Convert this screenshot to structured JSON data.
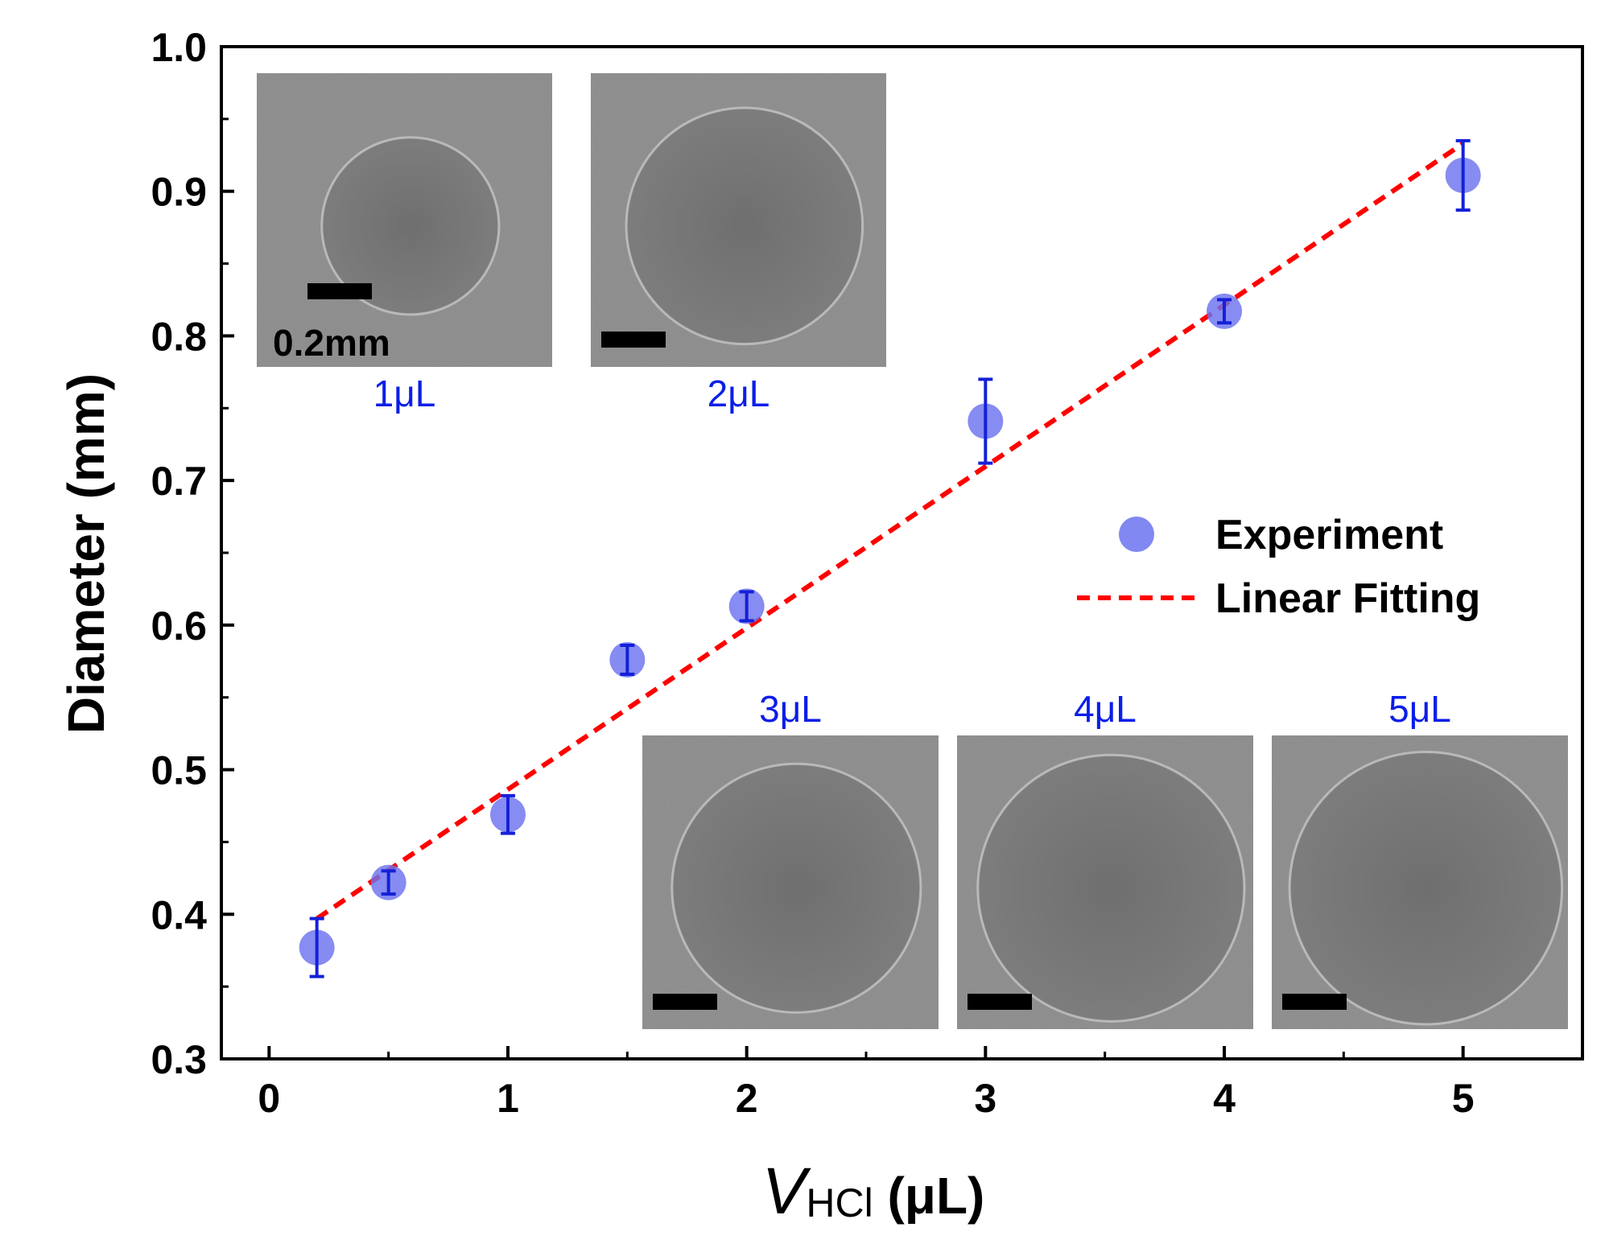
{
  "chart_data": {
    "type": "scatter",
    "title": "",
    "xlabel": "V",
    "xlabel_subscript": "HCl",
    "xlabel_unit": " (μL)",
    "ylabel": "Diameter (mm)",
    "xlim": [
      -0.2,
      5.5
    ],
    "ylim": [
      0.3,
      1.0
    ],
    "x_ticks": [
      0,
      1,
      2,
      3,
      4,
      5
    ],
    "x_tick_labels": [
      "0",
      "1",
      "2",
      "3",
      "4",
      "5"
    ],
    "y_ticks": [
      0.3,
      0.4,
      0.5,
      0.6,
      0.7,
      0.8,
      0.9,
      1.0
    ],
    "y_tick_labels": [
      "0.3",
      "0.4",
      "0.5",
      "0.6",
      "0.7",
      "0.8",
      "0.9",
      "1.0"
    ],
    "grid": false,
    "legend_position": "right-middle",
    "series": [
      {
        "name": "Experiment",
        "kind": "scatter",
        "color": "#6b73ee",
        "error_color": "#1520d8",
        "points": [
          {
            "x": 0.2,
            "y": 0.377,
            "err": 0.02
          },
          {
            "x": 0.5,
            "y": 0.422,
            "err": 0.008
          },
          {
            "x": 1.0,
            "y": 0.469,
            "err": 0.013
          },
          {
            "x": 1.5,
            "y": 0.576,
            "err": 0.01
          },
          {
            "x": 2.0,
            "y": 0.613,
            "err": 0.01
          },
          {
            "x": 3.0,
            "y": 0.741,
            "err": 0.029
          },
          {
            "x": 4.0,
            "y": 0.817,
            "err": 0.008
          },
          {
            "x": 5.0,
            "y": 0.911,
            "err": 0.024
          }
        ]
      },
      {
        "name": "Linear Fitting",
        "kind": "line",
        "style": "dashed",
        "color": "#ff0000",
        "x": [
          0.2,
          5.0
        ],
        "y": [
          0.397,
          0.933
        ]
      }
    ],
    "insets": [
      {
        "label": "1μL",
        "scale_label": "0.2mm",
        "ring": 0.3
      },
      {
        "label": "2μL",
        "scale_label": "",
        "ring": 0.4
      },
      {
        "label": "3μL",
        "scale_label": "",
        "ring": 0.42
      },
      {
        "label": "4μL",
        "scale_label": "",
        "ring": 0.45
      },
      {
        "label": "5μL",
        "scale_label": "",
        "ring": 0.46
      }
    ]
  }
}
